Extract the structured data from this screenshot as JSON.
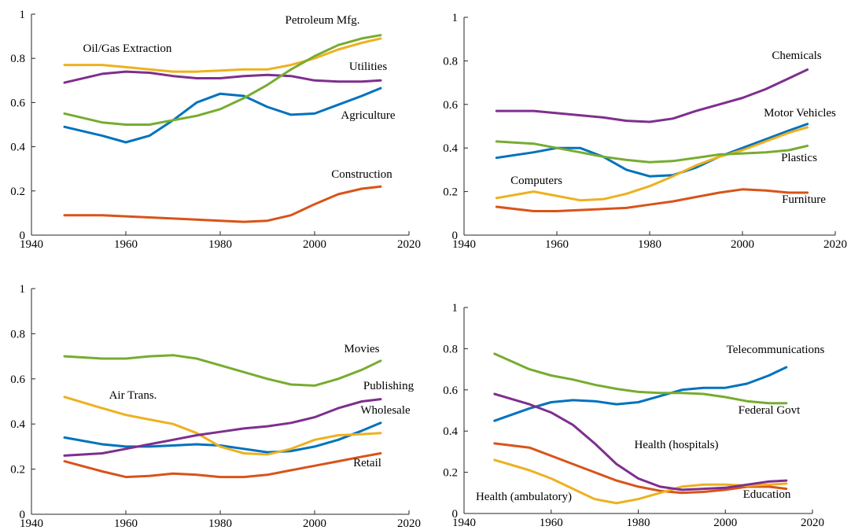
{
  "chart_data": [
    {
      "type": "line",
      "xlim": [
        1940,
        2020
      ],
      "ylim": [
        0,
        1
      ],
      "xticks": [
        1940,
        1960,
        1980,
        2000,
        2020
      ],
      "yticks": [
        0,
        0.2,
        0.4,
        0.6,
        0.8,
        1
      ],
      "x": [
        1947,
        1955,
        1960,
        1965,
        1970,
        1975,
        1980,
        1985,
        1990,
        1995,
        2000,
        2005,
        2010,
        2014
      ],
      "series": [
        {
          "name": "Agriculture",
          "color": "#0072bd",
          "values": [
            0.49,
            0.45,
            0.42,
            0.45,
            0.52,
            0.6,
            0.64,
            0.63,
            0.58,
            0.545,
            0.55,
            0.59,
            0.63,
            0.665
          ]
        },
        {
          "name": "Construction",
          "color": "#d95319",
          "values": [
            0.09,
            0.09,
            0.085,
            0.08,
            0.075,
            0.07,
            0.065,
            0.06,
            0.065,
            0.09,
            0.14,
            0.185,
            0.21,
            0.22
          ]
        },
        {
          "name": "Oil/Gas Extraction",
          "color": "#edb120",
          "values": [
            0.77,
            0.77,
            0.76,
            0.75,
            0.74,
            0.74,
            0.745,
            0.75,
            0.75,
            0.77,
            0.8,
            0.84,
            0.87,
            0.89
          ]
        },
        {
          "name": "Utilities",
          "color": "#7e2f8e",
          "values": [
            0.69,
            0.73,
            0.74,
            0.735,
            0.72,
            0.71,
            0.71,
            0.72,
            0.725,
            0.72,
            0.7,
            0.695,
            0.695,
            0.7
          ]
        },
        {
          "name": "Petroleum Mfg.",
          "color": "#77ac30",
          "values": [
            0.55,
            0.51,
            0.5,
            0.5,
            0.52,
            0.54,
            0.57,
            0.62,
            0.68,
            0.75,
            0.81,
            0.86,
            0.89,
            0.905
          ]
        }
      ]
    },
    {
      "type": "line",
      "xlim": [
        1940,
        2020
      ],
      "ylim": [
        0,
        1
      ],
      "xticks": [
        1940,
        1960,
        1980,
        2000,
        2020
      ],
      "yticks": [
        0,
        0.2,
        0.4,
        0.6,
        0.8,
        1
      ],
      "x": [
        1947,
        1955,
        1960,
        1965,
        1970,
        1975,
        1980,
        1985,
        1990,
        1995,
        2000,
        2005,
        2010,
        2014
      ],
      "series": [
        {
          "name": "Motor Vehicles",
          "color": "#0072bd",
          "values": [
            0.355,
            0.38,
            0.4,
            0.4,
            0.36,
            0.3,
            0.27,
            0.275,
            0.31,
            0.36,
            0.4,
            0.44,
            0.48,
            0.51
          ]
        },
        {
          "name": "Furniture",
          "color": "#d95319",
          "values": [
            0.13,
            0.11,
            0.11,
            0.115,
            0.12,
            0.125,
            0.14,
            0.155,
            0.175,
            0.195,
            0.21,
            0.205,
            0.195,
            0.195
          ]
        },
        {
          "name": "Computers",
          "color": "#edb120",
          "values": [
            0.17,
            0.2,
            0.18,
            0.16,
            0.165,
            0.19,
            0.225,
            0.27,
            0.32,
            0.36,
            0.39,
            0.43,
            0.47,
            0.495
          ]
        },
        {
          "name": "Chemicals",
          "color": "#7e2f8e",
          "values": [
            0.57,
            0.57,
            0.56,
            0.55,
            0.54,
            0.525,
            0.52,
            0.535,
            0.57,
            0.6,
            0.63,
            0.67,
            0.72,
            0.76
          ]
        },
        {
          "name": "Plastics",
          "color": "#77ac30",
          "values": [
            0.43,
            0.42,
            0.4,
            0.38,
            0.36,
            0.345,
            0.335,
            0.34,
            0.355,
            0.37,
            0.375,
            0.38,
            0.39,
            0.41
          ]
        }
      ]
    },
    {
      "type": "line",
      "xlim": [
        1940,
        2020
      ],
      "ylim": [
        0,
        1
      ],
      "xticks": [
        1940,
        1960,
        1980,
        2000,
        2020
      ],
      "yticks": [
        0,
        0.2,
        0.4,
        0.6,
        0.8,
        1
      ],
      "x": [
        1947,
        1955,
        1960,
        1965,
        1970,
        1975,
        1980,
        1985,
        1990,
        1995,
        2000,
        2005,
        2010,
        2014
      ],
      "series": [
        {
          "name": "Wholesale",
          "color": "#0072bd",
          "values": [
            0.34,
            0.31,
            0.3,
            0.3,
            0.305,
            0.31,
            0.305,
            0.29,
            0.275,
            0.28,
            0.3,
            0.33,
            0.37,
            0.405
          ]
        },
        {
          "name": "Retail",
          "color": "#d95319",
          "values": [
            0.235,
            0.19,
            0.165,
            0.17,
            0.18,
            0.175,
            0.165,
            0.165,
            0.175,
            0.195,
            0.215,
            0.235,
            0.255,
            0.27
          ]
        },
        {
          "name": "Air Trans.",
          "color": "#edb120",
          "values": [
            0.52,
            0.47,
            0.44,
            0.42,
            0.4,
            0.36,
            0.3,
            0.27,
            0.265,
            0.29,
            0.33,
            0.35,
            0.355,
            0.36
          ]
        },
        {
          "name": "Publishing",
          "color": "#7e2f8e",
          "values": [
            0.26,
            0.27,
            0.29,
            0.31,
            0.33,
            0.35,
            0.365,
            0.38,
            0.39,
            0.405,
            0.43,
            0.47,
            0.5,
            0.51
          ]
        },
        {
          "name": "Movies",
          "color": "#77ac30",
          "values": [
            0.7,
            0.69,
            0.69,
            0.7,
            0.705,
            0.69,
            0.66,
            0.63,
            0.6,
            0.575,
            0.57,
            0.6,
            0.64,
            0.68
          ]
        }
      ]
    },
    {
      "type": "line",
      "xlim": [
        1940,
        2020
      ],
      "ylim": [
        0,
        1
      ],
      "xticks": [
        1940,
        1960,
        1980,
        2000,
        2020
      ],
      "yticks": [
        0,
        0.2,
        0.4,
        0.6,
        0.8,
        1
      ],
      "x": [
        1947,
        1955,
        1960,
        1965,
        1970,
        1975,
        1980,
        1985,
        1990,
        1995,
        2000,
        2005,
        2010,
        2014
      ],
      "series": [
        {
          "name": "Telecommunications",
          "color": "#0072bd",
          "values": [
            0.45,
            0.51,
            0.54,
            0.55,
            0.545,
            0.53,
            0.54,
            0.57,
            0.6,
            0.61,
            0.61,
            0.63,
            0.67,
            0.71
          ]
        },
        {
          "name": "Education",
          "color": "#d95319",
          "values": [
            0.34,
            0.32,
            0.28,
            0.24,
            0.2,
            0.16,
            0.13,
            0.11,
            0.1,
            0.105,
            0.115,
            0.13,
            0.13,
            0.12
          ]
        },
        {
          "name": "Health (ambulatory)",
          "color": "#edb120",
          "values": [
            0.26,
            0.21,
            0.17,
            0.12,
            0.07,
            0.05,
            0.07,
            0.1,
            0.13,
            0.14,
            0.14,
            0.135,
            0.14,
            0.145
          ]
        },
        {
          "name": "Health (hospitals)",
          "color": "#7e2f8e",
          "values": [
            0.58,
            0.53,
            0.49,
            0.43,
            0.34,
            0.24,
            0.17,
            0.13,
            0.115,
            0.12,
            0.125,
            0.14,
            0.155,
            0.16
          ]
        },
        {
          "name": "Federal Govt",
          "color": "#77ac30",
          "values": [
            0.775,
            0.7,
            0.67,
            0.65,
            0.625,
            0.605,
            0.59,
            0.585,
            0.585,
            0.58,
            0.565,
            0.545,
            0.535,
            0.535
          ]
        }
      ]
    }
  ]
}
